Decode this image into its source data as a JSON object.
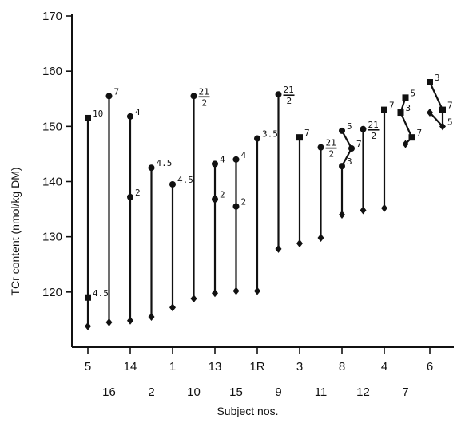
{
  "chart_data": {
    "type": "scatter",
    "title": "",
    "xlabel": "Subject nos.",
    "ylabel": "TCr content (nmol/kg DM)",
    "ylim": [
      110,
      170
    ],
    "yticks": [
      120,
      130,
      140,
      150,
      160,
      170
    ],
    "grid": false,
    "legend": "none",
    "x_tick_rows": [
      [
        "5",
        "14",
        "1",
        "13",
        "1R",
        "3",
        "8",
        "4",
        "6"
      ],
      [
        "16",
        "2",
        "10",
        "15",
        "9",
        "11",
        "12",
        "7"
      ]
    ],
    "subjects": [
      {
        "id": "5",
        "points": [
          {
            "y": 151.5,
            "marker": "square",
            "label": "10"
          },
          {
            "y": 119.0,
            "marker": "square",
            "label": "4.5"
          },
          {
            "y": 113.8,
            "marker": "diamond"
          }
        ]
      },
      {
        "id": "16",
        "points": [
          {
            "y": 155.5,
            "marker": "circle",
            "label": "7"
          },
          {
            "y": 114.5,
            "marker": "diamond"
          }
        ]
      },
      {
        "id": "14",
        "points": [
          {
            "y": 151.8,
            "marker": "circle",
            "label": "4"
          },
          {
            "y": 137.2,
            "marker": "circle",
            "label": "2"
          },
          {
            "y": 114.8,
            "marker": "diamond"
          }
        ]
      },
      {
        "id": "2",
        "points": [
          {
            "y": 142.5,
            "marker": "circle",
            "label": "4.5"
          },
          {
            "y": 115.5,
            "marker": "diamond"
          }
        ]
      },
      {
        "id": "1",
        "points": [
          {
            "y": 139.5,
            "marker": "circle",
            "label": "4.5"
          },
          {
            "y": 117.2,
            "marker": "diamond"
          }
        ]
      },
      {
        "id": "10",
        "points": [
          {
            "y": 155.5,
            "marker": "circle",
            "label": "21/2"
          },
          {
            "y": 118.8,
            "marker": "diamond"
          }
        ]
      },
      {
        "id": "13",
        "points": [
          {
            "y": 143.2,
            "marker": "circle",
            "label": "4"
          },
          {
            "y": 136.8,
            "marker": "circle",
            "label": "2"
          },
          {
            "y": 119.8,
            "marker": "diamond"
          }
        ]
      },
      {
        "id": "15",
        "points": [
          {
            "y": 144.0,
            "marker": "circle",
            "label": "4"
          },
          {
            "y": 135.5,
            "marker": "circle",
            "label": "2"
          },
          {
            "y": 120.2,
            "marker": "diamond"
          }
        ]
      },
      {
        "id": "1R",
        "points": [
          {
            "y": 147.8,
            "marker": "circle",
            "label": "3.5"
          },
          {
            "y": 120.2,
            "marker": "diamond"
          }
        ]
      },
      {
        "id": "9",
        "points": [
          {
            "y": 155.8,
            "marker": "circle",
            "label": "21/2"
          },
          {
            "y": 127.8,
            "marker": "diamond"
          }
        ]
      },
      {
        "id": "3",
        "points": [
          {
            "y": 148.0,
            "marker": "square",
            "label": "7"
          },
          {
            "y": 128.8,
            "marker": "diamond"
          }
        ]
      },
      {
        "id": "11",
        "points": [
          {
            "y": 146.2,
            "marker": "circle",
            "label": "21/2"
          },
          {
            "y": 129.8,
            "marker": "diamond"
          }
        ]
      },
      {
        "id": "8",
        "points": [
          {
            "y": 149.2,
            "marker": "circle",
            "label": "5"
          },
          {
            "y": 146.0,
            "marker": "circle",
            "label": "7"
          },
          {
            "y": 142.8,
            "marker": "circle",
            "label": "3"
          },
          {
            "y": 134.0,
            "marker": "diamond"
          }
        ]
      },
      {
        "id": "12",
        "points": [
          {
            "y": 149.5,
            "marker": "circle",
            "label": "21/2"
          },
          {
            "y": 134.8,
            "marker": "diamond"
          }
        ]
      },
      {
        "id": "4",
        "points": [
          {
            "y": 153.0,
            "marker": "square",
            "label": "7"
          },
          {
            "y": 135.2,
            "marker": "diamond"
          }
        ]
      },
      {
        "id": "7",
        "points": [
          {
            "y": 155.2,
            "marker": "square",
            "label": "5"
          },
          {
            "y": 152.5,
            "marker": "square",
            "label": "3"
          },
          {
            "y": 148.0,
            "marker": "square",
            "label": "7"
          },
          {
            "y": 146.8,
            "marker": "diamond"
          }
        ]
      },
      {
        "id": "6",
        "points": [
          {
            "y": 158.0,
            "marker": "square",
            "label": "3"
          },
          {
            "y": 153.0,
            "marker": "square",
            "label": "7"
          },
          {
            "y": 150.0,
            "marker": "diamond",
            "label": "5"
          },
          {
            "y": 152.5,
            "marker": "diamond"
          }
        ]
      }
    ]
  }
}
